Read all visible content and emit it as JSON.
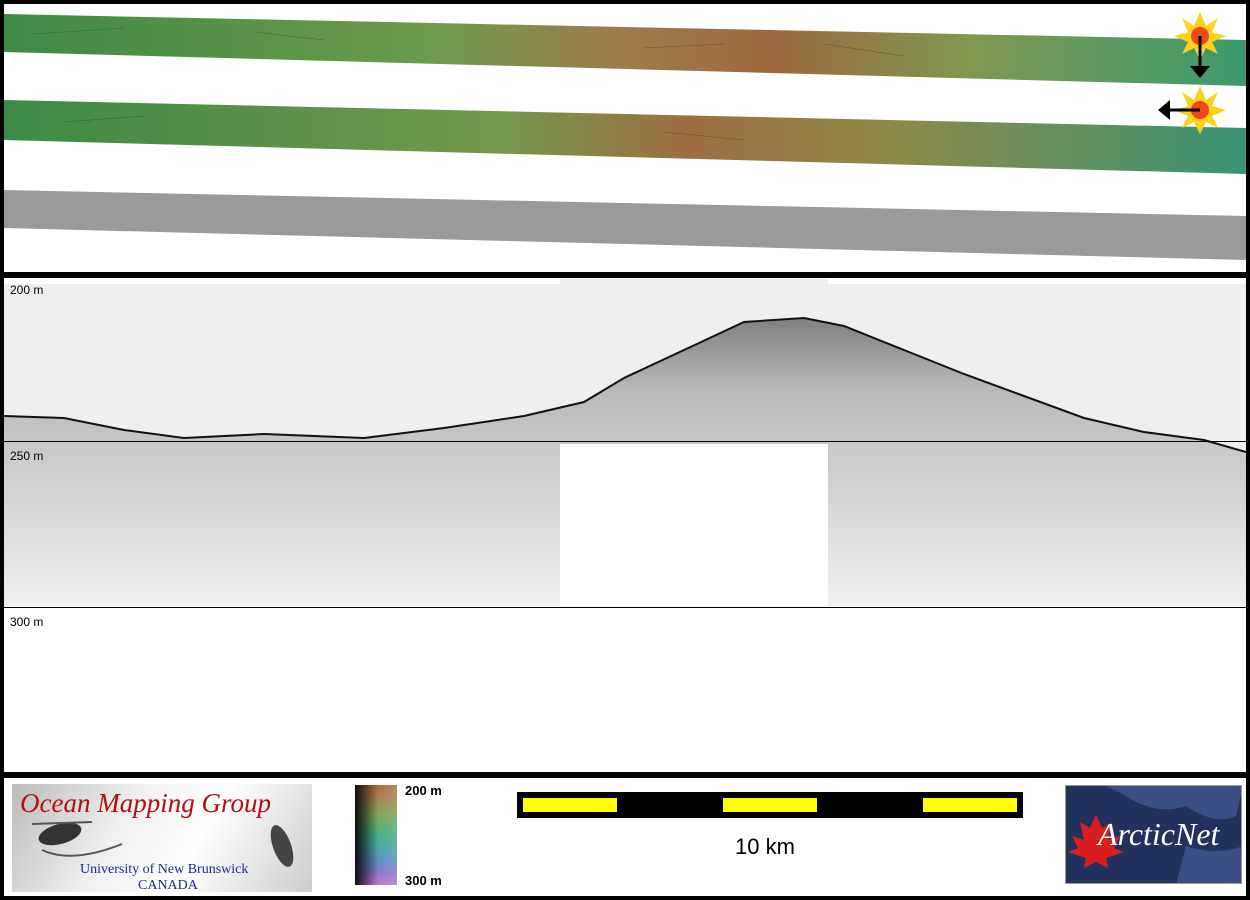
{
  "depth_labels": [
    "200 m",
    "250 m",
    "300 m"
  ],
  "colorbar": {
    "top_label": "200 m",
    "bottom_label": "300 m"
  },
  "scale": {
    "label": "10 km"
  },
  "logos": {
    "omg": {
      "title": "Ocean Mapping Group",
      "line1": "University of New Brunswick",
      "line2": "CANADA"
    },
    "arcticnet": {
      "text": "ArcticNet"
    }
  },
  "colors": {
    "frame": "#000000",
    "scalebar_fill": "#ffff00",
    "omg_title": "#b01010",
    "omg_sub": "#1c2a8a",
    "arcticnet_bg": "#22315e"
  }
}
